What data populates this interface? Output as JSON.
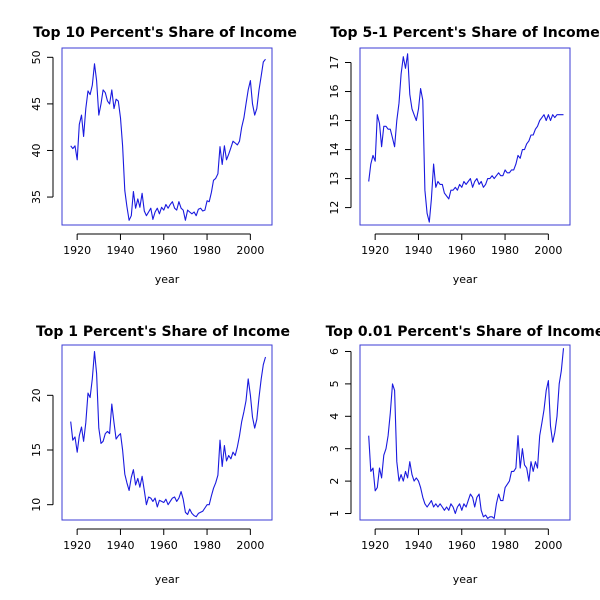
{
  "colors": {
    "series": "#1a1adf",
    "frame": "#3b3bd6"
  },
  "chart_data": [
    {
      "type": "line",
      "title": "Top 10 Percent's Share of Income",
      "xlabel": "year",
      "ylabel": "",
      "xlim": [
        1913,
        2010
      ],
      "ylim": [
        32,
        51
      ],
      "xticks": [
        1920,
        1940,
        1960,
        1980,
        2000
      ],
      "yticks": [
        35,
        40,
        45,
        50
      ],
      "x": [
        1917,
        1918,
        1919,
        1920,
        1921,
        1922,
        1923,
        1924,
        1925,
        1926,
        1927,
        1928,
        1929,
        1930,
        1931,
        1932,
        1933,
        1934,
        1935,
        1936,
        1937,
        1938,
        1939,
        1940,
        1941,
        1942,
        1943,
        1944,
        1945,
        1946,
        1947,
        1948,
        1949,
        1950,
        1951,
        1952,
        1953,
        1954,
        1955,
        1956,
        1957,
        1958,
        1959,
        1960,
        1961,
        1962,
        1963,
        1964,
        1965,
        1966,
        1967,
        1968,
        1969,
        1970,
        1971,
        1972,
        1973,
        1974,
        1975,
        1976,
        1977,
        1978,
        1979,
        1980,
        1981,
        1982,
        1983,
        1984,
        1985,
        1986,
        1987,
        1988,
        1989,
        1990,
        1991,
        1992,
        1993,
        1994,
        1995,
        1996,
        1997,
        1998,
        1999,
        2000,
        2001,
        2002,
        2003,
        2004,
        2005,
        2006,
        2007
      ],
      "series": [
        {
          "values": [
            40.5,
            40.2,
            40.5,
            39.0,
            42.8,
            43.8,
            41.5,
            44.5,
            46.4,
            46.0,
            47.0,
            49.3,
            47.5,
            43.8,
            45.0,
            46.5,
            46.2,
            45.3,
            45.0,
            46.5,
            44.5,
            45.5,
            45.3,
            43.5,
            40.5,
            35.7,
            34.0,
            32.5,
            33.0,
            35.6,
            33.8,
            34.8,
            33.9,
            35.4,
            33.5,
            33.0,
            33.4,
            33.8,
            32.6,
            33.4,
            33.8,
            33.2,
            33.9,
            33.6,
            34.2,
            33.8,
            34.2,
            34.5,
            33.8,
            33.6,
            34.5,
            33.8,
            33.6,
            32.5,
            33.6,
            33.4,
            33.2,
            33.4,
            33.0,
            33.7,
            33.8,
            33.5,
            33.6,
            34.6,
            34.5,
            35.5,
            36.8,
            37.0,
            37.5,
            40.4,
            38.5,
            40.5,
            39.0,
            39.6,
            40.3,
            41.0,
            40.8,
            40.6,
            41.0,
            42.5,
            43.5,
            45.0,
            46.5,
            47.5,
            45.0,
            43.8,
            44.5,
            46.5,
            48.0,
            49.5,
            49.8
          ]
        }
      ]
    },
    {
      "type": "line",
      "title": "Top 5-1 Percent's Share of Income",
      "xlabel": "year",
      "ylabel": "",
      "xlim": [
        1913,
        2010
      ],
      "ylim": [
        11.4,
        17.5
      ],
      "xticks": [
        1920,
        1940,
        1960,
        1980,
        2000
      ],
      "yticks": [
        12,
        13,
        14,
        15,
        16,
        17
      ],
      "x": [
        1917,
        1918,
        1919,
        1920,
        1921,
        1922,
        1923,
        1924,
        1925,
        1926,
        1927,
        1928,
        1929,
        1930,
        1931,
        1932,
        1933,
        1934,
        1935,
        1936,
        1937,
        1938,
        1939,
        1940,
        1941,
        1942,
        1943,
        1944,
        1945,
        1946,
        1947,
        1948,
        1949,
        1950,
        1951,
        1952,
        1953,
        1954,
        1955,
        1956,
        1957,
        1958,
        1959,
        1960,
        1961,
        1962,
        1963,
        1964,
        1965,
        1966,
        1967,
        1968,
        1969,
        1970,
        1971,
        1972,
        1973,
        1974,
        1975,
        1976,
        1977,
        1978,
        1979,
        1980,
        1981,
        1982,
        1983,
        1984,
        1985,
        1986,
        1987,
        1988,
        1989,
        1990,
        1991,
        1992,
        1993,
        1994,
        1995,
        1996,
        1997,
        1998,
        1999,
        2000,
        2001,
        2002,
        2003,
        2004,
        2005,
        2006,
        2007
      ],
      "series": [
        {
          "values": [
            12.9,
            13.5,
            13.8,
            13.6,
            15.2,
            14.9,
            14.1,
            14.8,
            14.8,
            14.7,
            14.7,
            14.4,
            14.1,
            15.0,
            15.6,
            16.6,
            17.2,
            16.8,
            17.3,
            15.9,
            15.4,
            15.2,
            15.0,
            15.4,
            16.1,
            15.7,
            12.6,
            11.8,
            11.5,
            12.3,
            13.5,
            12.7,
            12.9,
            12.8,
            12.8,
            12.5,
            12.4,
            12.3,
            12.6,
            12.6,
            12.7,
            12.6,
            12.8,
            12.7,
            12.9,
            12.8,
            12.9,
            13.0,
            12.7,
            12.9,
            13.0,
            12.8,
            12.9,
            12.7,
            12.8,
            13.0,
            13.0,
            13.1,
            13.0,
            13.1,
            13.2,
            13.1,
            13.1,
            13.3,
            13.2,
            13.2,
            13.3,
            13.3,
            13.5,
            13.8,
            13.7,
            14.0,
            14.0,
            14.2,
            14.3,
            14.5,
            14.5,
            14.7,
            14.8,
            15.0,
            15.1,
            15.2,
            15.0,
            15.2,
            15.0,
            15.2,
            15.1,
            15.2,
            15.2,
            15.2,
            15.2
          ]
        }
      ]
    },
    {
      "type": "line",
      "title": "Top 1 Percent's Share of Income",
      "xlabel": "year",
      "ylabel": "",
      "xlim": [
        1913,
        2010
      ],
      "ylim": [
        8.6,
        24.6
      ],
      "xticks": [
        1920,
        1940,
        1960,
        1980,
        2000
      ],
      "yticks": [
        10,
        15,
        20
      ],
      "x": [
        1917,
        1918,
        1919,
        1920,
        1921,
        1922,
        1923,
        1924,
        1925,
        1926,
        1927,
        1928,
        1929,
        1930,
        1931,
        1932,
        1933,
        1934,
        1935,
        1936,
        1937,
        1938,
        1939,
        1940,
        1941,
        1942,
        1943,
        1944,
        1945,
        1946,
        1947,
        1948,
        1949,
        1950,
        1951,
        1952,
        1953,
        1954,
        1955,
        1956,
        1957,
        1958,
        1959,
        1960,
        1961,
        1962,
        1963,
        1964,
        1965,
        1966,
        1967,
        1968,
        1969,
        1970,
        1971,
        1972,
        1973,
        1974,
        1975,
        1976,
        1977,
        1978,
        1979,
        1980,
        1981,
        1982,
        1983,
        1984,
        1985,
        1986,
        1987,
        1988,
        1989,
        1990,
        1991,
        1992,
        1993,
        1994,
        1995,
        1996,
        1997,
        1998,
        1999,
        2000,
        2001,
        2002,
        2003,
        2004,
        2005,
        2006,
        2007
      ],
      "series": [
        {
          "values": [
            17.6,
            15.9,
            16.2,
            14.8,
            16.3,
            17.1,
            15.8,
            17.5,
            20.2,
            19.8,
            21.5,
            24.0,
            22.0,
            17.0,
            15.6,
            15.8,
            16.5,
            16.7,
            16.5,
            19.2,
            17.5,
            16.0,
            16.3,
            16.5,
            15.0,
            12.8,
            12.0,
            11.3,
            12.5,
            13.2,
            11.8,
            12.4,
            11.6,
            12.6,
            11.3,
            10.0,
            10.7,
            10.6,
            10.3,
            10.6,
            9.8,
            10.4,
            10.3,
            10.2,
            10.5,
            10.0,
            10.3,
            10.6,
            10.7,
            10.3,
            10.6,
            11.2,
            10.5,
            9.3,
            9.1,
            9.6,
            9.2,
            9.0,
            8.9,
            9.2,
            9.3,
            9.4,
            9.7,
            10.0,
            10.0,
            10.8,
            11.5,
            12.0,
            12.7,
            15.9,
            13.5,
            15.4,
            14.0,
            14.5,
            14.2,
            14.8,
            14.5,
            15.3,
            16.3,
            17.6,
            18.5,
            19.5,
            21.5,
            20.0,
            18.0,
            17.0,
            17.8,
            19.8,
            21.5,
            22.8,
            23.5
          ]
        }
      ]
    },
    {
      "type": "line",
      "title": "Top 0.01 Percent's Share of Income",
      "xlabel": "year",
      "ylabel": "",
      "xlim": [
        1913,
        2010
      ],
      "ylim": [
        0.8,
        6.2
      ],
      "xticks": [
        1920,
        1940,
        1960,
        1980,
        2000
      ],
      "yticks": [
        1,
        2,
        3,
        4,
        5,
        6
      ],
      "x": [
        1917,
        1918,
        1919,
        1920,
        1921,
        1922,
        1923,
        1924,
        1925,
        1926,
        1927,
        1928,
        1929,
        1930,
        1931,
        1932,
        1933,
        1934,
        1935,
        1936,
        1937,
        1938,
        1939,
        1940,
        1941,
        1942,
        1943,
        1944,
        1945,
        1946,
        1947,
        1948,
        1949,
        1950,
        1951,
        1952,
        1953,
        1954,
        1955,
        1956,
        1957,
        1958,
        1959,
        1960,
        1961,
        1962,
        1963,
        1964,
        1965,
        1966,
        1967,
        1968,
        1969,
        1970,
        1971,
        1972,
        1973,
        1974,
        1975,
        1976,
        1977,
        1978,
        1979,
        1980,
        1981,
        1982,
        1983,
        1984,
        1985,
        1986,
        1987,
        1988,
        1989,
        1990,
        1991,
        1992,
        1993,
        1994,
        1995,
        1996,
        1997,
        1998,
        1999,
        2000,
        2001,
        2002,
        2003,
        2004,
        2005,
        2006,
        2007
      ],
      "series": [
        {
          "values": [
            3.4,
            2.3,
            2.4,
            1.7,
            1.8,
            2.4,
            2.1,
            2.8,
            3.0,
            3.4,
            4.1,
            5.0,
            4.8,
            2.6,
            2.0,
            2.2,
            2.0,
            2.3,
            2.1,
            2.6,
            2.2,
            2.0,
            2.1,
            2.0,
            1.8,
            1.5,
            1.3,
            1.2,
            1.3,
            1.4,
            1.2,
            1.3,
            1.2,
            1.3,
            1.2,
            1.1,
            1.2,
            1.1,
            1.3,
            1.2,
            1.0,
            1.2,
            1.3,
            1.1,
            1.3,
            1.2,
            1.4,
            1.6,
            1.5,
            1.2,
            1.5,
            1.6,
            1.1,
            0.9,
            0.95,
            0.85,
            0.9,
            0.9,
            0.85,
            1.3,
            1.6,
            1.4,
            1.4,
            1.8,
            1.9,
            2.0,
            2.3,
            2.3,
            2.4,
            3.4,
            2.4,
            3.0,
            2.5,
            2.4,
            2.0,
            2.6,
            2.3,
            2.6,
            2.4,
            3.4,
            3.8,
            4.2,
            4.8,
            5.1,
            3.7,
            3.2,
            3.5,
            4.0,
            5.0,
            5.4,
            6.1
          ]
        }
      ]
    }
  ]
}
